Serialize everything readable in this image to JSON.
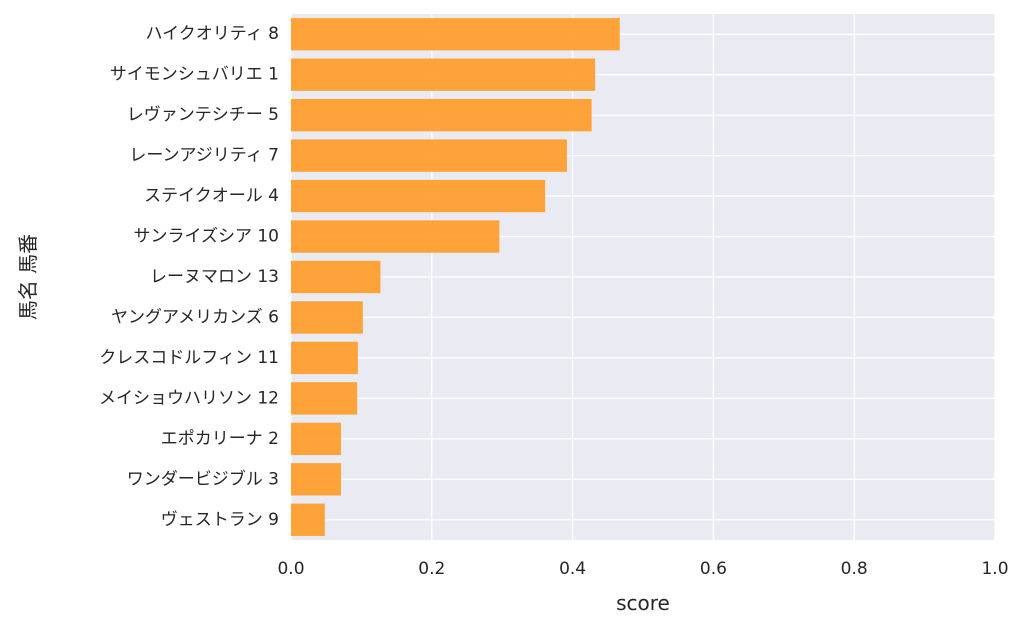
{
  "chart_data": {
    "type": "bar",
    "orientation": "horizontal",
    "categories": [
      "ハイクオリティ 8",
      "サイモンシュバリエ 1",
      "レヴァンテシチー 5",
      "レーンアジリティ 7",
      "ステイクオール 4",
      "サンライズシア 10",
      "レーヌマロン 13",
      "ヤングアメリカンズ 6",
      "クレスコドルフィン 11",
      "メイショウハリソン 12",
      "エポカリーナ 2",
      "ワンダービジブル 3",
      "ヴェストラン 9"
    ],
    "values": [
      0.467,
      0.432,
      0.427,
      0.392,
      0.361,
      0.296,
      0.127,
      0.102,
      0.095,
      0.094,
      0.071,
      0.071,
      0.048
    ],
    "xlabel": "score",
    "ylabel": "馬名 馬番",
    "xlim": [
      0.0,
      1.0
    ],
    "xticks": [
      "0.0",
      "0.2",
      "0.4",
      "0.6",
      "0.8",
      "1.0"
    ],
    "grid": true,
    "legend": "none",
    "colors": {
      "bar": "#ff9f2e",
      "plot_background": "#eaeaf2",
      "grid": "#ffffff",
      "text": "#262626"
    }
  }
}
